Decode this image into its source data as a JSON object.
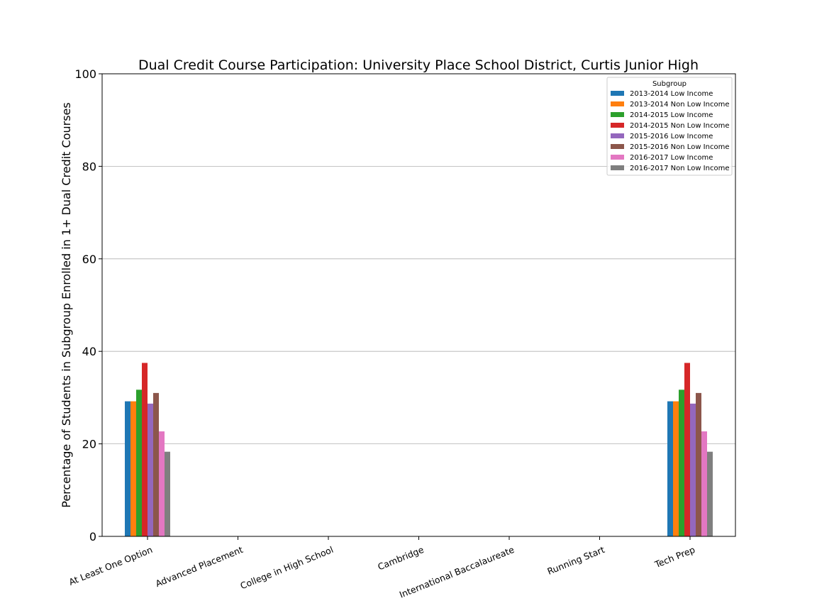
{
  "chart_data": {
    "type": "bar",
    "title": "Dual Credit Course Participation: University Place School District, Curtis Junior High",
    "xlabel": "",
    "ylabel": "Percentage of Students in Subgroup Enrolled in 1+ Dual Credit Courses",
    "ylim": [
      0,
      100
    ],
    "yticks": [
      "0",
      "20",
      "40",
      "60",
      "80",
      "100"
    ],
    "grid": "horizontal",
    "legend_title": "Subgroup",
    "legend_position": "top-right",
    "categories": [
      "At Least One Option",
      "Advanced Placement",
      "College in High School",
      "Cambridge",
      "International Baccalaureate",
      "Running Start",
      "Tech Prep"
    ],
    "series": [
      {
        "name": "2013-2014 Low Income",
        "color": "#1f77b4",
        "values": [
          29.2,
          0,
          0,
          0,
          0,
          0,
          29.2
        ]
      },
      {
        "name": "2013-2014 Non Low Income",
        "color": "#ff7f0e",
        "values": [
          29.2,
          0,
          0,
          0,
          0,
          0,
          29.2
        ]
      },
      {
        "name": "2014-2015 Low Income",
        "color": "#2ca02c",
        "values": [
          31.7,
          0,
          0,
          0,
          0,
          0,
          31.7
        ]
      },
      {
        "name": "2014-2015 Non Low Income",
        "color": "#d62728",
        "values": [
          37.5,
          0,
          0,
          0,
          0,
          0,
          37.5
        ]
      },
      {
        "name": "2015-2016 Low Income",
        "color": "#9467bd",
        "values": [
          28.7,
          0,
          0,
          0,
          0,
          0,
          28.7
        ]
      },
      {
        "name": "2015-2016 Non Low Income",
        "color": "#8c564b",
        "values": [
          31.0,
          0,
          0,
          0,
          0,
          0,
          31.0
        ]
      },
      {
        "name": "2016-2017 Low Income",
        "color": "#e377c2",
        "values": [
          22.7,
          0,
          0,
          0,
          0,
          0,
          22.7
        ]
      },
      {
        "name": "2016-2017 Non Low Income",
        "color": "#7f7f7f",
        "values": [
          18.3,
          0,
          0,
          0,
          0,
          0,
          18.3
        ]
      }
    ]
  }
}
